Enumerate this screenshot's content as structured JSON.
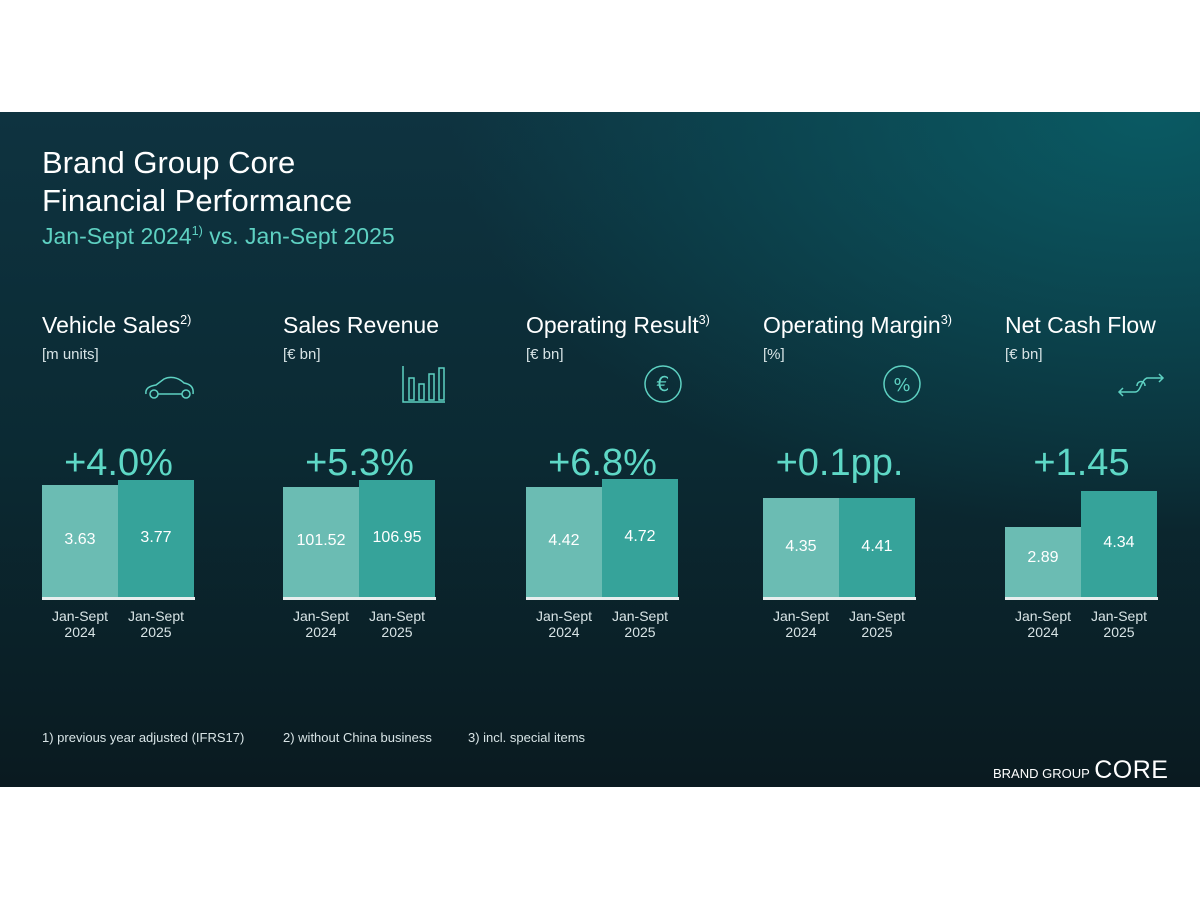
{
  "title": {
    "line1": "Brand Group Core",
    "line2": "Financial Performance",
    "subtitle_a": "Jan-Sept 2024",
    "subtitle_sup": "1)",
    "subtitle_b": " vs. Jan-Sept 2025"
  },
  "colors": {
    "bar_2024": "#6bbcb3",
    "bar_2025": "#36a39a",
    "accent": "#5ed8c6"
  },
  "chart_data": [
    {
      "type": "bar",
      "title": "Vehicle Sales",
      "title_sup": "2)",
      "unit": "[m units]",
      "icon": "car-icon",
      "change": "+4.0%",
      "categories": [
        "Jan-Sept 2024",
        "Jan-Sept 2025"
      ],
      "values": [
        3.63,
        3.77
      ],
      "labels": [
        "3.63",
        "3.77"
      ]
    },
    {
      "type": "bar",
      "title": "Sales Revenue",
      "title_sup": "",
      "unit": "[€ bn]",
      "icon": "bar-chart-icon",
      "change": "+5.3%",
      "categories": [
        "Jan-Sept 2024",
        "Jan-Sept 2025"
      ],
      "values": [
        101.52,
        106.95
      ],
      "labels": [
        "101.52",
        "106.95"
      ]
    },
    {
      "type": "bar",
      "title": "Operating Result",
      "title_sup": "3)",
      "unit": "[€ bn]",
      "icon": "euro-icon",
      "change": "+6.8%",
      "categories": [
        "Jan-Sept 2024",
        "Jan-Sept 2025"
      ],
      "values": [
        4.42,
        4.72
      ],
      "labels": [
        "4.42",
        "4.72"
      ]
    },
    {
      "type": "bar",
      "title": "Operating Margin",
      "title_sup": "3)",
      "unit": "[%]",
      "icon": "percent-icon",
      "change": "+0.1pp.",
      "categories": [
        "Jan-Sept 2024",
        "Jan-Sept 2025"
      ],
      "values": [
        4.35,
        4.41
      ],
      "labels": [
        "4.35",
        "4.41"
      ]
    },
    {
      "type": "bar",
      "title": "Net Cash Flow",
      "title_sup": "",
      "unit": "[€ bn]",
      "icon": "cash-flow-icon",
      "change": "+1.45",
      "categories": [
        "Jan-Sept 2024",
        "Jan-Sept 2025"
      ],
      "values": [
        2.89,
        4.34
      ],
      "labels": [
        "2.89",
        "4.34"
      ]
    }
  ],
  "xlabels": [
    [
      "Jan-Sept",
      "2024"
    ],
    [
      "Jan-Sept",
      "2025"
    ]
  ],
  "footnotes": [
    "1) previous year adjusted (IFRS17)",
    "2) without China business",
    "3) incl. special items"
  ],
  "logo": {
    "a": "BRAND GROUP",
    "b": "CORE"
  }
}
